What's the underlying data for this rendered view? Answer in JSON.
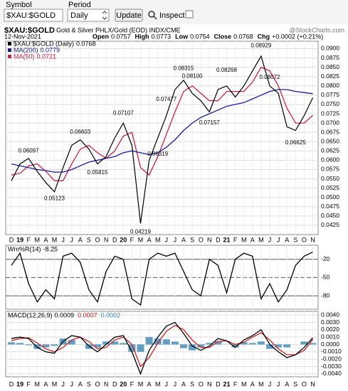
{
  "toolbar": {
    "symbol_label": "Symbol",
    "symbol_value": "$XAU:$GOLD",
    "period_label": "Period",
    "period_value": "Daily",
    "button": "Update",
    "inspect": "Inspect"
  },
  "header": {
    "symbol": "$XAU:$GOLD",
    "description": "Gold & Silver PHLX/Gold (EOD) INDX/CME",
    "credit": "@StockCharts.com",
    "date": "12-Nov-2021",
    "quote": [
      {
        "label": "Open",
        "value": "0.0757"
      },
      {
        "label": "High",
        "value": "0.0773"
      },
      {
        "label": "Low",
        "value": "0.0754"
      },
      {
        "label": "Close",
        "value": "0.0768"
      },
      {
        "label": "Chg",
        "value": "+0.0002 (+0.21%)"
      }
    ]
  },
  "chart_data": [
    {
      "type": "line",
      "x": [
        "2018-12",
        "2019-01",
        "2019-02",
        "2019-03",
        "2019-04",
        "2019-05",
        "2019-06",
        "2019-07",
        "2019-08",
        "2019-09",
        "2019-10",
        "2019-11",
        "2019-12",
        "2020-01",
        "2020-02",
        "2020-03",
        "2020-04",
        "2020-05",
        "2020-06",
        "2020-07",
        "2020-08",
        "2020-09",
        "2020-10",
        "2020-11",
        "2020-12",
        "2021-01",
        "2021-02",
        "2021-03",
        "2021-04",
        "2021-05",
        "2021-06",
        "2021-07",
        "2021-08",
        "2021-09",
        "2021-10",
        "2021-11"
      ],
      "x_labels": [
        "D",
        "19",
        "F",
        "M",
        "A",
        "M",
        "J",
        "J",
        "A",
        "S",
        "O",
        "N",
        "D",
        "20",
        "F",
        "M",
        "A",
        "M",
        "J",
        "J",
        "A",
        "S",
        "O",
        "N",
        "D",
        "21",
        "F",
        "M",
        "A",
        "M",
        "J",
        "J",
        "A",
        "S",
        "O",
        "N"
      ],
      "series": [
        {
          "name": "$XAU:$GOLD (Daily)",
          "color": "#000000",
          "values": [
            0.0545,
            0.059,
            0.0605,
            0.057,
            0.054,
            0.0515,
            0.058,
            0.064,
            0.0655,
            0.063,
            0.059,
            0.061,
            0.066,
            0.07,
            0.064,
            0.043,
            0.06,
            0.066,
            0.072,
            0.079,
            0.0815,
            0.078,
            0.076,
            0.073,
            0.079,
            0.08,
            0.077,
            0.08,
            0.084,
            0.088,
            0.08,
            0.078,
            0.069,
            0.068,
            0.072,
            0.0768
          ]
        },
        {
          "name": "MA(200)",
          "color": "#1b1b9a",
          "values": [
            0.059,
            0.0585,
            0.058,
            0.0575,
            0.0572,
            0.0568,
            0.0568,
            0.0575,
            0.0585,
            0.0595,
            0.06,
            0.0605,
            0.061,
            0.062,
            0.0625,
            0.062,
            0.0615,
            0.062,
            0.0635,
            0.0655,
            0.068,
            0.07,
            0.0715,
            0.0725,
            0.0735,
            0.0745,
            0.075,
            0.0755,
            0.0765,
            0.0775,
            0.0785,
            0.079,
            0.079,
            0.0785,
            0.0782,
            0.0779
          ]
        },
        {
          "name": "MA(50)",
          "color": "#cc2244",
          "values": [
            0.056,
            0.0565,
            0.0585,
            0.059,
            0.057,
            0.0545,
            0.0545,
            0.059,
            0.063,
            0.064,
            0.062,
            0.0605,
            0.0625,
            0.0665,
            0.0675,
            0.058,
            0.056,
            0.061,
            0.067,
            0.073,
            0.0785,
            0.08,
            0.078,
            0.076,
            0.076,
            0.0785,
            0.0785,
            0.0785,
            0.081,
            0.085,
            0.084,
            0.08,
            0.074,
            0.07,
            0.07,
            0.0721
          ]
        }
      ],
      "annotations": {
        "x": [
          "2019-02",
          "2019-05",
          "2019-08",
          "2019-10",
          "2020-01",
          "2020-03",
          "2020-05",
          "2020-06",
          "2020-08",
          "2020-09",
          "2020-11",
          "2021-01",
          "2021-05",
          "2021-06",
          "2021-09"
        ],
        "values": [
          0.06097,
          0.05123,
          0.06603,
          0.05815,
          0.07107,
          0.04219,
          0.06319,
          0.07477,
          0.08315,
          0.081,
          0.07157,
          0.08268,
          0.08929,
          0.08072,
          0.06625
        ],
        "value_labels": [
          "0.06097",
          "0.05123",
          "0.06603",
          "0.05815",
          "0.07107",
          "0.04219",
          "0.06319",
          "0.07477",
          "0.08315",
          "0.08100",
          "0.07157",
          "0.08268",
          "0.08929",
          "0.08072",
          "0.06625"
        ]
      },
      "ylim": [
        0.04,
        0.092
      ],
      "yticks": [
        0.0425,
        {
          "value": 0.045,
          "label": "0.0450"
        },
        0.0475,
        {
          "value": 0.05,
          "label": "0.0500"
        },
        0.0525,
        {
          "value": 0.055,
          "label": "0.0550"
        },
        0.0575,
        {
          "value": 0.06,
          "label": "0.0600"
        },
        0.0625,
        {
          "value": 0.065,
          "label": "0.0650"
        },
        0.0675,
        {
          "value": 0.07,
          "label": "0.0700"
        },
        0.0725,
        {
          "value": 0.075,
          "label": "0.0750"
        },
        0.0775,
        {
          "value": 0.08,
          "label": "0.0800"
        },
        0.0825,
        {
          "value": 0.085,
          "label": "0.0850"
        },
        0.0875,
        {
          "value": 0.09,
          "label": "0.0900"
        }
      ],
      "grid": true
    },
    {
      "type": "line",
      "title": "Wm%R(14)",
      "series": [
        {
          "name": "Wm%R(14)",
          "color": "#000000",
          "values": [
            -30,
            -10,
            -60,
            -90,
            -70,
            -85,
            -15,
            -10,
            -25,
            -70,
            -90,
            -40,
            -15,
            -20,
            -85,
            -95,
            -20,
            -10,
            -15,
            -10,
            -40,
            -70,
            -80,
            -20,
            -30,
            -75,
            -20,
            -10,
            -15,
            -85,
            -60,
            -90,
            -70,
            -30,
            -15,
            -8.25
          ]
        }
      ],
      "ylim": [
        -102,
        3
      ],
      "yticks": [
        -20,
        -50,
        -80
      ],
      "grid": true
    },
    {
      "type": "macd",
      "title": "MACD(12,26,9)",
      "series": [
        {
          "name": "MACD",
          "color": "#000000",
          "values": [
            0.0008,
            0.001,
            0.0008,
            -0.0004,
            -0.001,
            -0.0012,
            0.0004,
            0.0012,
            0.001,
            -0.0002,
            -0.001,
            0.0,
            0.001,
            0.0012,
            -0.001,
            -0.004,
            -0.0008,
            0.001,
            0.0025,
            0.003,
            0.0015,
            -0.0002,
            -0.0008,
            -0.0002,
            0.0008,
            0.0005,
            -0.0004,
            0.0006,
            0.0012,
            0.002,
            0.0,
            -0.001,
            -0.0018,
            -0.0014,
            -0.0004,
            0.0009
          ]
        },
        {
          "name": "Signal",
          "color": "#cc2222",
          "values": [
            0.0005,
            0.0008,
            0.0009,
            0.0002,
            -0.0006,
            -0.001,
            -0.0004,
            0.0006,
            0.001,
            0.0004,
            -0.0006,
            -0.0004,
            0.0006,
            0.001,
            0.0,
            -0.003,
            -0.0018,
            0.0002,
            0.0018,
            0.0026,
            0.002,
            0.0006,
            -0.0004,
            -0.0004,
            0.0004,
            0.0005,
            0.0,
            0.0003,
            0.001,
            0.0016,
            0.0006,
            -0.0006,
            -0.0014,
            -0.0014,
            -0.0008,
            0.0007
          ]
        },
        {
          "name": "Histogram",
          "color": "#3a86b4",
          "values": [
            0.0003,
            0.0002,
            -0.0001,
            -0.0006,
            -0.0004,
            -0.0002,
            0.0008,
            0.0006,
            0.0,
            -0.0006,
            -0.0004,
            0.0004,
            0.0004,
            0.0002,
            -0.001,
            -0.001,
            0.001,
            0.0008,
            0.0007,
            0.0004,
            -0.0005,
            -0.0008,
            -0.0004,
            0.0002,
            0.0004,
            0.0,
            -0.0004,
            0.0003,
            0.0002,
            0.0004,
            -0.0006,
            -0.0004,
            -0.0004,
            0.0,
            0.0004,
            0.0002
          ]
        }
      ],
      "ylim": [
        -0.0044,
        0.0045
      ],
      "yticks": [
        {
          "value": 0.004,
          "label": "0.0040"
        },
        {
          "value": 0.003,
          "label": "0.0030"
        },
        {
          "value": 0.002,
          "label": "0.0020"
        },
        {
          "value": 0.001,
          "label": "0.0010"
        },
        {
          "value": 0,
          "label": "0.0000"
        },
        {
          "value": -0.001,
          "label": "-0.0010"
        },
        {
          "value": -0.002,
          "label": "-0.0020"
        },
        {
          "value": -0.003,
          "label": "-0.0030"
        },
        {
          "value": -0.004,
          "label": "-0.0040"
        }
      ],
      "grid": true
    }
  ]
}
